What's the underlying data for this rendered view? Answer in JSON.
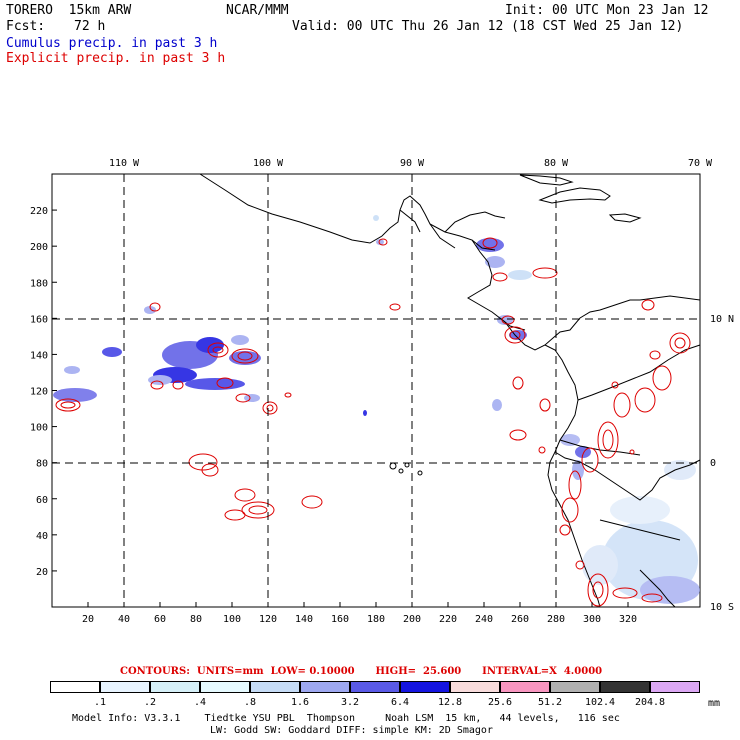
{
  "header": {
    "model": "TORERO  15km ARW",
    "org": "NCAR/MMM",
    "init": "Init: 00 UTC Mon 23 Jan 12",
    "fcst_label": "Fcst:",
    "fcst_value": "72 h",
    "valid": "Valid: 00 UTC Thu 26 Jan 12 (18 CST Wed 25 Jan 12)",
    "field1": "Cumulus precip. in past 3 h",
    "field2": "Explicit precip. in past 3 h"
  },
  "map": {
    "lon_labels": [
      "110 W",
      "100 W",
      "90 W",
      "80 W",
      "70 W"
    ],
    "lat_labels": [
      "10 N",
      "0",
      "10 S"
    ],
    "y_ticks": [
      "20",
      "40",
      "60",
      "80",
      "100",
      "120",
      "140",
      "160",
      "180",
      "200",
      "220"
    ],
    "x_ticks": [
      "20",
      "40",
      "60",
      "80",
      "100",
      "120",
      "140",
      "160",
      "180",
      "200",
      "220",
      "240",
      "260",
      "280",
      "300",
      "320"
    ]
  },
  "contours": "CONTOURS:  UNITS=mm  LOW= 0.10000      HIGH=  25.600      INTERVAL=X  4.0000",
  "colorbar": {
    "labels": [
      ".1",
      ".2",
      ".4",
      ".8",
      "1.6",
      "3.2",
      "6.4",
      "12.8",
      "25.6",
      "51.2",
      "102.4",
      "204.8"
    ],
    "unit": "mm",
    "colors": [
      "#ffffff",
      "#e8f4ff",
      "#d6f0f8",
      "#e6faff",
      "#c6dcf6",
      "#9ea8f0",
      "#5a5ae6",
      "#1414e0",
      "#f8dcdc",
      "#f896c0",
      "#b0b0b0",
      "#343434",
      "#dca8f4"
    ]
  },
  "footer": {
    "line1": "Model Info: V3.3.1    Tiedtke YSU PBL  Thompson     Noah LSM  15 km,   44 levels,   116 sec",
    "line2": "LW: Godd SW: Goddard DIFF: simple KM: 2D Smagor"
  }
}
